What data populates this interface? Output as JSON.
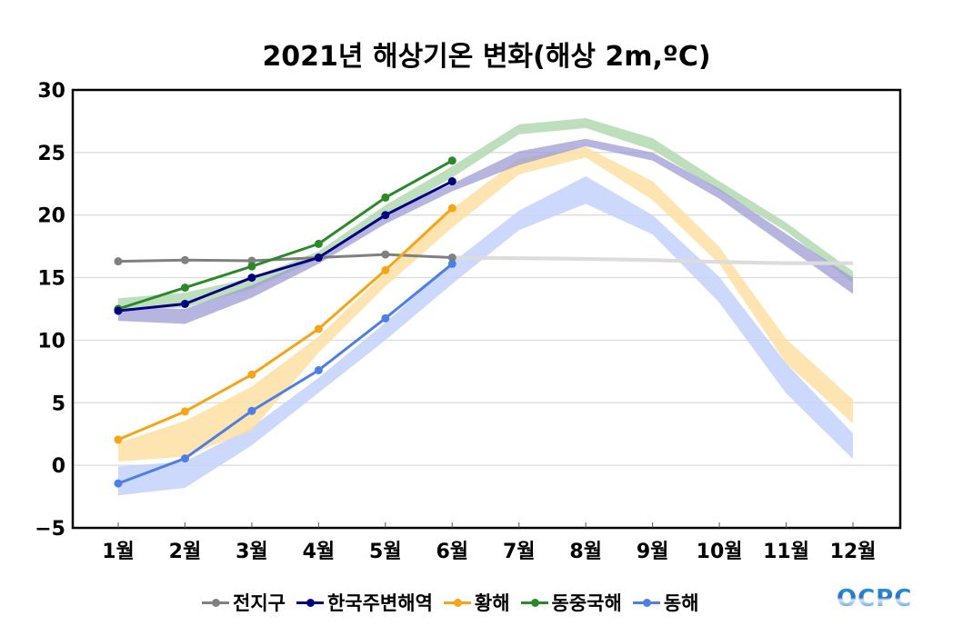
{
  "chart_data": {
    "type": "line",
    "title": "2021년 해상기온 변화(해상 2m,ºC)",
    "xlabel": "",
    "ylabel": "",
    "categories": [
      "1월",
      "2월",
      "3월",
      "4월",
      "5월",
      "6월",
      "7월",
      "8월",
      "9월",
      "10월",
      "11월",
      "12월"
    ],
    "ylim": [
      -5,
      30
    ],
    "yticks": [
      -5,
      0,
      5,
      10,
      15,
      20,
      25,
      30
    ],
    "ytick_labels": [
      "−5",
      "0",
      "5",
      "10",
      "15",
      "20",
      "25",
      "30"
    ],
    "grid": true,
    "legend_position": "bottom",
    "series": [
      {
        "name": "전지구",
        "color": "#808080",
        "band_color": "#dcdcdc",
        "values": [
          16.3,
          16.4,
          16.35,
          16.6,
          16.85,
          16.6,
          null,
          null,
          null,
          null,
          null,
          null
        ],
        "band_low": [
          null,
          null,
          null,
          null,
          null,
          16.45,
          16.4,
          16.35,
          16.25,
          16.1,
          16.0,
          16.0
        ],
        "band_high": [
          null,
          null,
          null,
          null,
          null,
          16.75,
          16.7,
          16.65,
          16.55,
          16.4,
          16.3,
          16.3
        ]
      },
      {
        "name": "한국주변해역",
        "color": "#000080",
        "band_color": "#9c9cd4",
        "values": [
          12.35,
          12.9,
          15.0,
          16.6,
          20.0,
          22.7,
          null,
          null,
          null,
          null,
          null,
          null
        ],
        "band_low": [
          11.55,
          11.3,
          13.4,
          16.1,
          19.3,
          21.9,
          24.0,
          25.5,
          24.35,
          21.3,
          17.5,
          13.7
        ],
        "band_high": [
          12.6,
          12.5,
          14.4,
          16.7,
          20.1,
          22.5,
          25.1,
          26.1,
          25.0,
          22.1,
          18.5,
          15.0
        ]
      },
      {
        "name": "황해",
        "color": "#f5a515",
        "band_color": "#fddfa3",
        "values": [
          2.05,
          4.3,
          7.25,
          10.9,
          15.6,
          20.55,
          null,
          null,
          null,
          null,
          null,
          null
        ],
        "band_low": [
          0.3,
          0.7,
          2.8,
          9.0,
          14.3,
          19.0,
          23.25,
          24.6,
          21.2,
          16.1,
          8.15,
          3.35
        ],
        "band_high": [
          1.8,
          3.55,
          6.3,
          10.3,
          15.4,
          20.5,
          24.5,
          25.45,
          22.7,
          17.45,
          10.1,
          5.25
        ]
      },
      {
        "name": "동중국해",
        "color": "#2a8a2a",
        "band_color": "#b3d9b0",
        "values": [
          12.5,
          14.2,
          15.9,
          17.7,
          21.4,
          24.35,
          null,
          null,
          null,
          null,
          null,
          null
        ],
        "band_low": [
          12.4,
          12.6,
          14.1,
          16.5,
          19.9,
          23.0,
          26.45,
          26.95,
          25.2,
          21.95,
          18.7,
          14.6
        ],
        "band_high": [
          13.35,
          13.8,
          15.0,
          17.1,
          20.8,
          23.9,
          27.25,
          27.75,
          26.15,
          22.7,
          19.4,
          15.5
        ]
      },
      {
        "name": "동해",
        "color": "#4d7ee8",
        "band_color": "#c3d1fb",
        "values": [
          -1.45,
          0.55,
          4.35,
          7.6,
          11.75,
          16.1,
          null,
          null,
          null,
          null,
          null,
          null
        ],
        "band_low": [
          -2.4,
          -1.8,
          1.6,
          5.8,
          10.0,
          14.5,
          18.8,
          20.9,
          18.45,
          13.0,
          5.75,
          0.5
        ],
        "band_high": [
          -0.1,
          0.3,
          3.05,
          7.0,
          11.4,
          16.2,
          20.35,
          23.1,
          20.0,
          15.05,
          8.15,
          2.55
        ]
      }
    ]
  },
  "legend": {
    "items": [
      "전지구",
      "한국주변해역",
      "황해",
      "동중국해",
      "동해"
    ]
  },
  "logo": {
    "text": "OCPC"
  }
}
